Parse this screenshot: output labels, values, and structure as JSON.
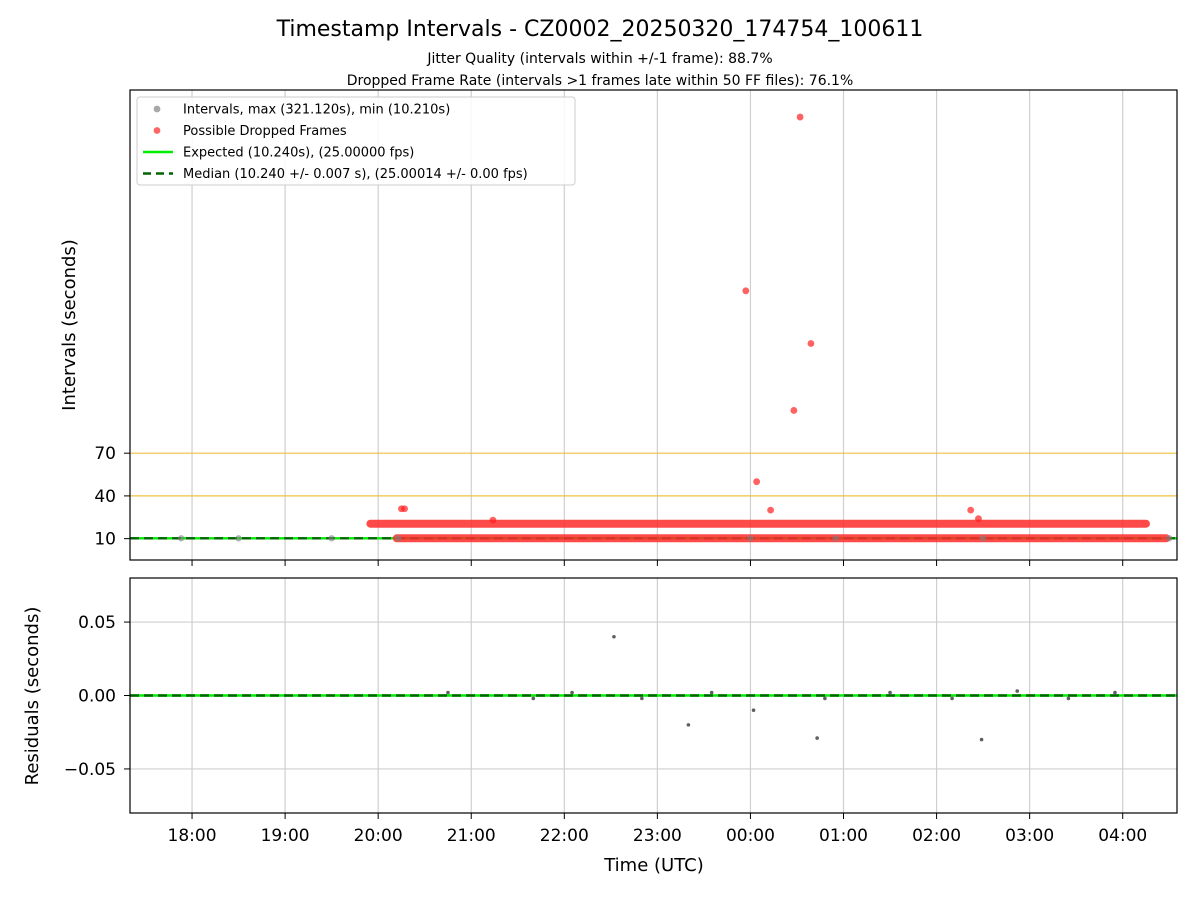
{
  "chart_data": [
    {
      "type": "scatter",
      "title": "Timestamp Intervals - CZ0002_20250320_174754_100611",
      "subtitle_lines": [
        "Jitter Quality (intervals within +/-1 frame): 88.7%",
        "Dropped Frame Rate (intervals >1 frames late within 50 FF files): 76.1%"
      ],
      "xlabel": "",
      "ylabel": "Intervals (seconds)",
      "x_scale": "time (UTC)",
      "x_range": [
        "2025-03-20T17:20",
        "2025-03-21T04:35"
      ],
      "y_range": [
        -5,
        325
      ],
      "y_ticks": [
        10,
        40,
        70
      ],
      "grid": "vertical only",
      "legend_position": "upper-left",
      "reference_lines": [
        {
          "name": "Expected (10.240s), (25.00000 fps)",
          "y": 10.24,
          "color": "#00ee00",
          "style": "solid"
        },
        {
          "name": "Median (10.240 +/- 0.007 s), (25.00014 +/- 0.00 fps)",
          "y": 10.24,
          "color": "#006400",
          "style": "dashed"
        },
        {
          "y": 40,
          "color": "#f0c040",
          "style": "solid"
        },
        {
          "y": 70,
          "color": "#f0c040",
          "style": "solid"
        }
      ],
      "series": [
        {
          "name": "Intervals, max (321.120s), min (10.210s)",
          "color": "#808080",
          "points": [
            {
              "x": "2025-03-20T17:53",
              "y": 10.24
            },
            {
              "x": "2025-03-20T18:30",
              "y": 10.24
            },
            {
              "x": "2025-03-20T19:30",
              "y": 10.24
            },
            {
              "x": "2025-03-20T20:13",
              "y": 10.24
            },
            {
              "x": "2025-03-21T00:00",
              "y": 10.24
            },
            {
              "x": "2025-03-21T00:55",
              "y": 10.24
            },
            {
              "x": "2025-03-21T02:30",
              "y": 10.24
            },
            {
              "x": "2025-03-21T04:30",
              "y": 10.24
            }
          ]
        },
        {
          "name": "Possible Dropped Frames",
          "color": "#ff0000",
          "points": [
            {
              "x": "2025-03-20T20:15",
              "y": 31.0
            },
            {
              "x": "2025-03-20T20:17",
              "y": 31.0
            },
            {
              "x": "2025-03-20T21:14",
              "y": 23.0
            },
            {
              "x": "2025-03-20T23:57",
              "y": 184.0
            },
            {
              "x": "2025-03-21T00:04",
              "y": 50.0
            },
            {
              "x": "2025-03-21T00:13",
              "y": 30.0
            },
            {
              "x": "2025-03-21T00:28",
              "y": 100.0
            },
            {
              "x": "2025-03-21T00:32",
              "y": 306.0
            },
            {
              "x": "2025-03-21T00:39",
              "y": 147.0
            },
            {
              "x": "2025-03-21T02:22",
              "y": 30.0
            },
            {
              "x": "2025-03-21T02:27",
              "y": 24.0
            }
          ]
        },
        {
          "name": "Possible Dropped Frames (dense bands)",
          "color": "#ff0000",
          "bands": [
            {
              "y": 10.24,
              "x_start": "2025-03-20T20:12",
              "x_end": "2025-03-21T04:28"
            },
            {
              "y": 20.48,
              "x_start": "2025-03-20T19:55",
              "x_end": "2025-03-21T04:15"
            }
          ]
        }
      ]
    },
    {
      "type": "scatter",
      "title": "",
      "xlabel": "Time (UTC)",
      "ylabel": "Residuals (seconds)",
      "x_range": [
        "2025-03-20T17:20",
        "2025-03-21T04:35"
      ],
      "x_ticks": [
        "18:00",
        "19:00",
        "20:00",
        "21:00",
        "22:00",
        "23:00",
        "00:00",
        "01:00",
        "02:00",
        "03:00",
        "04:00"
      ],
      "y_range": [
        -0.08,
        0.08
      ],
      "y_ticks": [
        "−0.05",
        "0.00",
        "0.05"
      ],
      "grid": "both",
      "reference_lines": [
        {
          "y": 0.0,
          "color": "#00ee00",
          "style": "solid"
        },
        {
          "y": 0.0,
          "color": "#006400",
          "style": "dashed"
        }
      ],
      "series": [
        {
          "name": "Residuals",
          "color": "#808080",
          "points": [
            {
              "x": "2025-03-20T22:32",
              "y": 0.04
            },
            {
              "x": "2025-03-20T23:20",
              "y": -0.02
            },
            {
              "x": "2025-03-21T00:02",
              "y": -0.01
            },
            {
              "x": "2025-03-21T00:43",
              "y": -0.029
            },
            {
              "x": "2025-03-21T02:29",
              "y": -0.03
            },
            {
              "x": "2025-03-20T20:45",
              "y": 0.002
            },
            {
              "x": "2025-03-20T21:40",
              "y": -0.002
            },
            {
              "x": "2025-03-20T22:05",
              "y": 0.002
            },
            {
              "x": "2025-03-20T22:50",
              "y": -0.002
            },
            {
              "x": "2025-03-20T23:35",
              "y": 0.002
            },
            {
              "x": "2025-03-21T00:48",
              "y": -0.002
            },
            {
              "x": "2025-03-21T01:30",
              "y": 0.002
            },
            {
              "x": "2025-03-21T02:10",
              "y": -0.002
            },
            {
              "x": "2025-03-21T02:52",
              "y": 0.003
            },
            {
              "x": "2025-03-21T03:25",
              "y": -0.002
            },
            {
              "x": "2025-03-21T03:55",
              "y": 0.002
            }
          ]
        }
      ]
    }
  ],
  "legend": [
    {
      "label": "Intervals, max (321.120s), min (10.210s)",
      "kind": "marker",
      "color": "#a8a8a8"
    },
    {
      "label": "Possible Dropped Frames",
      "kind": "marker",
      "color": "#ff6666"
    },
    {
      "label": "Expected (10.240s), (25.00000 fps)",
      "kind": "line",
      "color": "#00ee00"
    },
    {
      "label": "Median (10.240 +/- 0.007 s), (25.00014 +/- 0.00 fps)",
      "kind": "dashed",
      "color": "#006400"
    }
  ]
}
